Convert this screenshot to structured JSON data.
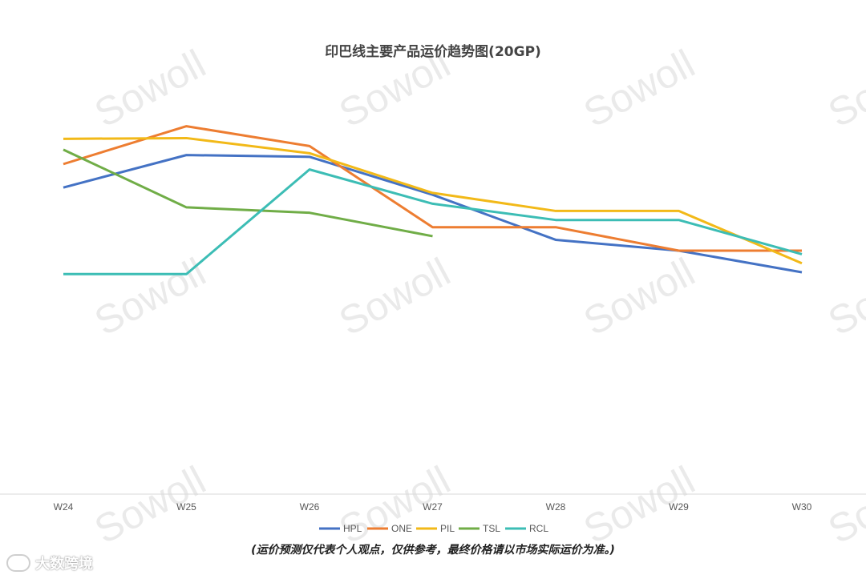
{
  "chart_data": {
    "type": "line",
    "title": "印巴线主要产品运价趋势图(20GP)",
    "categories": [
      "W24",
      "W25",
      "W26",
      "W27",
      "W28",
      "W29",
      "W30"
    ],
    "ylim": [
      0,
      100
    ],
    "grid": false,
    "legend_position": "bottom",
    "series": [
      {
        "name": "HPL",
        "color": "#4472C4",
        "values": [
          85,
          94,
          93.5,
          83,
          70.5,
          67.5,
          61.5
        ]
      },
      {
        "name": "ONE",
        "color": "#ED7D31",
        "values": [
          91.5,
          102,
          96.5,
          74,
          74,
          67.5,
          67.5
        ]
      },
      {
        "name": "PIL",
        "color": "#F2B918",
        "values": [
          98.5,
          98.7,
          94.5,
          83.5,
          78.5,
          78.5,
          64
        ]
      },
      {
        "name": "TSL",
        "color": "#70AD47",
        "values": [
          95.5,
          79.5,
          78,
          71.5,
          null,
          null,
          null
        ]
      },
      {
        "name": "RCL",
        "color": "#3CBDB5",
        "values": [
          61,
          61,
          90,
          80.5,
          76,
          76,
          66.5
        ]
      }
    ]
  },
  "note": "(运价预测仅代表个人观点，仅供参考，最终价格请以市场实际运价为准。)",
  "watermark": "Sowoll",
  "brand": "大数跨境"
}
